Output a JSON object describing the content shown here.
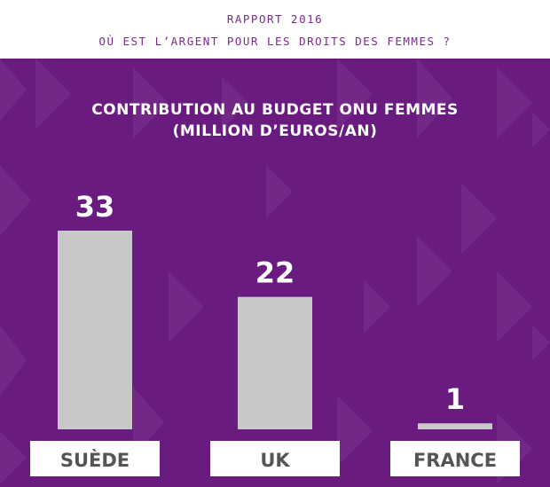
{
  "header": {
    "line1": "RAPPORT 2016",
    "line2": "OÙ EST L’ARGENT POUR LES DROITS DES FEMMES ?"
  },
  "colors": {
    "background": "#6a1b80",
    "bar": "#c8c8c8",
    "text": "#ffffff",
    "header_text": "#7b2a8e",
    "label_box": "#ffffff",
    "label_text": "#555555"
  },
  "chart_data": {
    "type": "bar",
    "title": "CONTRIBUTION AU BUDGET ONU FEMMES",
    "subtitle": "(MILLION D’EUROS/AN)",
    "categories": [
      "SUÈDE",
      "UK",
      "FRANCE"
    ],
    "values": [
      33,
      22,
      1
    ],
    "ylim": [
      0,
      33
    ],
    "grid": false,
    "legend": "none",
    "data_labels": [
      "33",
      "22",
      "1"
    ]
  }
}
